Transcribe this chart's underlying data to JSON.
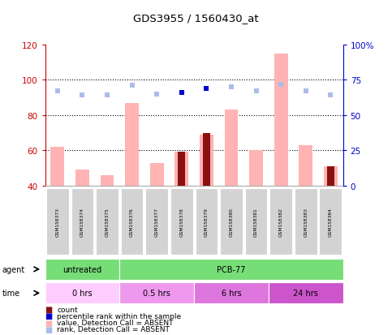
{
  "title": "GDS3955 / 1560430_at",
  "samples": [
    "GSM158373",
    "GSM158374",
    "GSM158375",
    "GSM158376",
    "GSM158377",
    "GSM158378",
    "GSM158379",
    "GSM158380",
    "GSM158381",
    "GSM158382",
    "GSM158383",
    "GSM158384"
  ],
  "pink_bars": [
    62,
    49,
    46,
    87,
    53,
    59,
    69,
    83,
    60,
    115,
    63,
    51
  ],
  "dark_red_bars": [
    null,
    null,
    null,
    null,
    null,
    59,
    70,
    null,
    null,
    null,
    null,
    51
  ],
  "blue_dots_right": [
    null,
    null,
    null,
    null,
    null,
    66,
    69,
    null,
    null,
    null,
    null,
    null
  ],
  "rank_dots_right": [
    67,
    64,
    64,
    71,
    65,
    null,
    null,
    70,
    67,
    72,
    67,
    64
  ],
  "ylim_left": [
    40,
    120
  ],
  "ylim_right": [
    0,
    100
  ],
  "yticks_left": [
    40,
    60,
    80,
    100,
    120
  ],
  "yticks_right": [
    0,
    25,
    50,
    75,
    100
  ],
  "yticklabels_right": [
    "0",
    "25",
    "50",
    "75",
    "100%"
  ],
  "pink_bar_color": "#FFB3B3",
  "dark_red_color": "#8B1010",
  "blue_dot_color": "#0000CC",
  "rank_dot_color": "#AABCE8",
  "left_axis_color": "#CC0000",
  "right_axis_color": "#0000CC",
  "bg_color": "#FFFFFF",
  "plot_bg": "#FFFFFF",
  "agent_untreated_color": "#77DD77",
  "agent_pcb_color": "#77DD77",
  "time_colors": [
    "#FFCCFF",
    "#EE99EE",
    "#DD77DD",
    "#CC55CC"
  ],
  "time_labels": [
    "0 hrs",
    "0.5 hrs",
    "6 hrs",
    "24 hrs"
  ],
  "time_starts": [
    0,
    3,
    6,
    9
  ],
  "time_ends": [
    3,
    6,
    9,
    12
  ],
  "n_samples": 12
}
